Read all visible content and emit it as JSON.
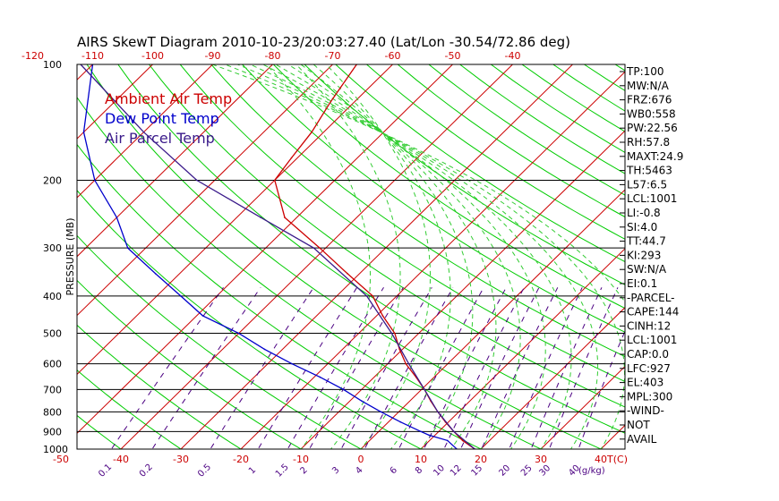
{
  "chart_data": {
    "type": "line",
    "title": "AIRS SkewT Diagram 2010-10-23/20:03:27.40 (Lat/Lon -30.54/72.86 deg)",
    "ylabel": "PRESSURE (MB)",
    "xlabel": "T(C)",
    "pressure_ticks": [
      "100",
      "200",
      "300",
      "400",
      "500",
      "600",
      "700",
      "800",
      "900",
      "1000"
    ],
    "pressure_values": [
      100,
      200,
      300,
      400,
      500,
      600,
      700,
      800,
      900,
      1000
    ],
    "top_temp_ticks": [
      -120,
      -110,
      -100,
      -90,
      -80,
      -70,
      -60,
      -50,
      -40
    ],
    "bottom_temp_ticks": [
      -50,
      -40,
      -30,
      -20,
      -10,
      0,
      10,
      20,
      30,
      40
    ],
    "mixing_ratio_ticks": [
      "0.1",
      "0.2",
      "0.5",
      "1",
      "1.5",
      "2",
      "3",
      "4",
      "6",
      "8",
      "10",
      "12",
      "15",
      "20",
      "25",
      "30",
      "40"
    ],
    "mixing_ratio_values": [
      0.1,
      0.2,
      0.5,
      1,
      1.5,
      2,
      3,
      4,
      6,
      8,
      10,
      12,
      15,
      20,
      25,
      30,
      40
    ],
    "mixing_ratio_unit": "(g/kg)",
    "legend": [
      {
        "name": "Ambient Air Temp",
        "color": "#cc0000"
      },
      {
        "name": "Dew Point Temp",
        "color": "#0000cc"
      },
      {
        "name": "Air Parcel Temp",
        "color": "#3a1a8a"
      }
    ],
    "grid": true,
    "series": [
      {
        "name": "Ambient Air Temp",
        "color": "#cc0000",
        "points": [
          [
            1000,
            19
          ],
          [
            950,
            15.5
          ],
          [
            900,
            12.5
          ],
          [
            850,
            9.5
          ],
          [
            800,
            6.5
          ],
          [
            750,
            3.5
          ],
          [
            700,
            0.5
          ],
          [
            650,
            -3
          ],
          [
            600,
            -7
          ],
          [
            550,
            -10.5
          ],
          [
            500,
            -14
          ],
          [
            450,
            -19
          ],
          [
            400,
            -24
          ],
          [
            350,
            -32
          ],
          [
            300,
            -41
          ],
          [
            250,
            -52
          ],
          [
            200,
            -60
          ],
          [
            175,
            -61
          ],
          [
            150,
            -62
          ],
          [
            125,
            -64
          ],
          [
            100,
            -66
          ]
        ]
      },
      {
        "name": "Dew Point Temp",
        "color": "#0000cc",
        "points": [
          [
            1000,
            16
          ],
          [
            950,
            13
          ],
          [
            920,
            9
          ],
          [
            900,
            7
          ],
          [
            850,
            2
          ],
          [
            800,
            -3
          ],
          [
            750,
            -8
          ],
          [
            700,
            -13
          ],
          [
            650,
            -19
          ],
          [
            600,
            -26
          ],
          [
            550,
            -33
          ],
          [
            500,
            -40
          ],
          [
            450,
            -49
          ],
          [
            400,
            -56
          ],
          [
            350,
            -64
          ],
          [
            300,
            -73
          ],
          [
            250,
            -80
          ],
          [
            200,
            -90
          ],
          [
            150,
            -100
          ],
          [
            100,
            -110
          ]
        ]
      },
      {
        "name": "Air Parcel Temp",
        "color": "#3a1a8a",
        "points": [
          [
            1000,
            19
          ],
          [
            900,
            12.5
          ],
          [
            800,
            6.5
          ],
          [
            700,
            0.5
          ],
          [
            600,
            -6.5
          ],
          [
            500,
            -14.5
          ],
          [
            400,
            -25
          ],
          [
            300,
            -42
          ],
          [
            250,
            -56
          ],
          [
            200,
            -73
          ],
          [
            150,
            -90
          ],
          [
            100,
            -112
          ]
        ]
      }
    ]
  },
  "indices": [
    "TP:100",
    "MW:N/A",
    "FRZ:676",
    "WB0:558",
    "PW:22.56",
    "RH:57.8",
    "MAXT:24.9",
    "TH:5463",
    "L57:6.5",
    "LCL:1001",
    "LI:-0.8",
    "SI:4.0",
    "TT:44.7",
    "KI:293",
    "SW:N/A",
    "EI:0.1",
    "-PARCEL-",
    "CAPE:144",
    "CINH:12",
    "LCL:1001",
    "CAP:0.0",
    "LFC:927",
    "EL:403",
    "MPL:300",
    "-WIND-",
    "NOT",
    "AVAIL"
  ],
  "colors": {
    "temp": "#cc0000",
    "dew": "#0000cc",
    "parcel": "#3a1a8a",
    "dry_adiabat": "#00cc00",
    "moist_adiabat": "#33cc33",
    "mixing": "#4b0082",
    "isotherm": "#cc0000"
  }
}
